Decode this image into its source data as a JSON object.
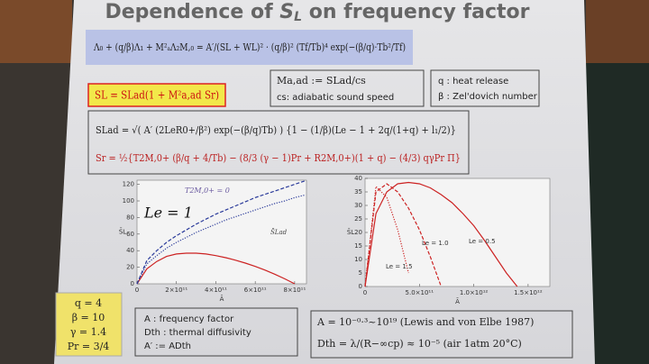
{
  "slide": {
    "title": [
      "Dependence of ",
      "S",
      "L",
      " on frequency factor"
    ],
    "eq_main": "Λ₀ + (q/β)Λ₁ + M²ₐΛ₂M,₀ = A′/(SL + WL)² · (q/β)² (Tf/Tb)⁴ exp(−(β/q)·Tb²/Tf)",
    "eq_SL": "SL = SLad(1 + M²a,ad Sr)",
    "mach": [
      "Ma,ad := SLad/cs",
      "cs: adiabatic sound speed"
    ],
    "defs": [
      "q : heat release",
      "β : Zel'dovich number"
    ],
    "eq_SLad": "SLad = √( A′ (2LeR0+/β²) exp(−(β/q)Tb) ) {1 − (1/β)(Le − 1 + 2q/(1+q) + l₁/2)}",
    "eq_Sr": "Sr = ½{T2M,0+ (β/q + 4/Tb) − (8/3 (γ − 1)Pr + R2M,0+)(1 + q) − (4/3) qγPr Π}",
    "params": [
      "q = 4",
      "β = 10",
      "γ = 1.4",
      "Pr = 3/4"
    ],
    "notation": [
      "A : frequency factor",
      "Dth : thermal diffusivity",
      "A′ := ADth"
    ],
    "refs": [
      "A = 10⁻⁰·³~10¹⁹  (Lewis and von Elbe 1987)",
      "Dth = λ/(R−∞cp) ≈ 10⁻⁵   (air 1atm 20°C)"
    ]
  },
  "chart_data": [
    {
      "type": "line",
      "x_label": "Ā",
      "y_label": "S̄L",
      "annotations": [
        "T2M,0+ = 0",
        "Le = 1",
        "S̄Lad"
      ],
      "x": [
        0,
        50000000000,
        100000000000,
        150000000000,
        200000000000,
        250000000000,
        300000000000,
        350000000000,
        400000000000,
        450000000000,
        500000000000,
        550000000000,
        600000000000,
        650000000000,
        700000000000,
        750000000000,
        800000000000,
        850000000000
      ],
      "xlim": [
        0,
        860000000000
      ],
      "ylim": [
        0,
        125
      ],
      "xticks": [
        0,
        {
          "value": 200000000000,
          "label": "2×10¹¹"
        },
        {
          "value": 400000000000,
          "label": "4×10¹¹"
        },
        {
          "value": 600000000000,
          "label": "6×10¹¹"
        },
        {
          "value": 800000000000,
          "label": "8×10¹¹"
        }
      ],
      "yticks": [
        0,
        20,
        40,
        60,
        80,
        100,
        120
      ],
      "series": [
        {
          "color": "#cc2222",
          "style": "solid",
          "values": [
            0,
            18,
            27,
            33,
            36,
            37,
            37,
            36,
            34,
            31.5,
            28.5,
            25,
            21,
            16.5,
            11.5,
            6,
            0,
            null
          ]
        },
        {
          "color": "#2a3a9a",
          "style": "dashed",
          "values": [
            0,
            28,
            40,
            50,
            58,
            65,
            72,
            78,
            84,
            89,
            94,
            99,
            104,
            108,
            112,
            116,
            120,
            124
          ]
        },
        {
          "color": "#2a3a9a",
          "style": "dotted",
          "values": [
            0,
            24,
            34,
            43,
            50,
            56,
            62,
            67,
            72,
            77,
            81,
            85,
            89,
            93,
            97,
            100,
            104,
            107
          ]
        }
      ]
    },
    {
      "type": "line",
      "x_label": "Ā",
      "y_label": "S̄L",
      "x": [
        0,
        100000000000,
        200000000000,
        300000000000,
        400000000000,
        500000000000,
        600000000000,
        700000000000,
        800000000000,
        900000000000,
        1000000000000,
        1100000000000,
        1200000000000,
        1300000000000,
        1400000000000
      ],
      "xlim": [
        0,
        1700000000000
      ],
      "ylim": [
        0,
        40
      ],
      "xticks": [
        0,
        {
          "value": 500000000000,
          "label": "5.0×10¹¹"
        },
        {
          "value": 1000000000000,
          "label": "1.0×10¹²"
        },
        {
          "value": 1500000000000,
          "label": "1.5×10¹²"
        }
      ],
      "yticks": [
        0,
        5,
        10,
        15,
        20,
        25,
        30,
        35,
        40
      ],
      "series": [
        {
          "name": "Le = 0.5",
          "color": "#cc2222",
          "style": "solid",
          "values": [
            0,
            27,
            35,
            38,
            38.5,
            38,
            36.5,
            34,
            31,
            27,
            22.5,
            17,
            11,
            5,
            0
          ]
        },
        {
          "name": "Le = 1.0",
          "color": "#cc2222",
          "style": "dashed",
          "values": [
            0,
            35,
            38,
            35,
            29,
            21,
            11,
            0,
            null,
            null,
            null,
            null,
            null,
            null,
            null
          ]
        },
        {
          "name": "Le = 1.5",
          "color": "#cc2222",
          "style": "dotted",
          "values": [
            0,
            37,
            33,
            21,
            5,
            null,
            null,
            null,
            null,
            null,
            null,
            null,
            null,
            null,
            null
          ]
        }
      ]
    }
  ]
}
